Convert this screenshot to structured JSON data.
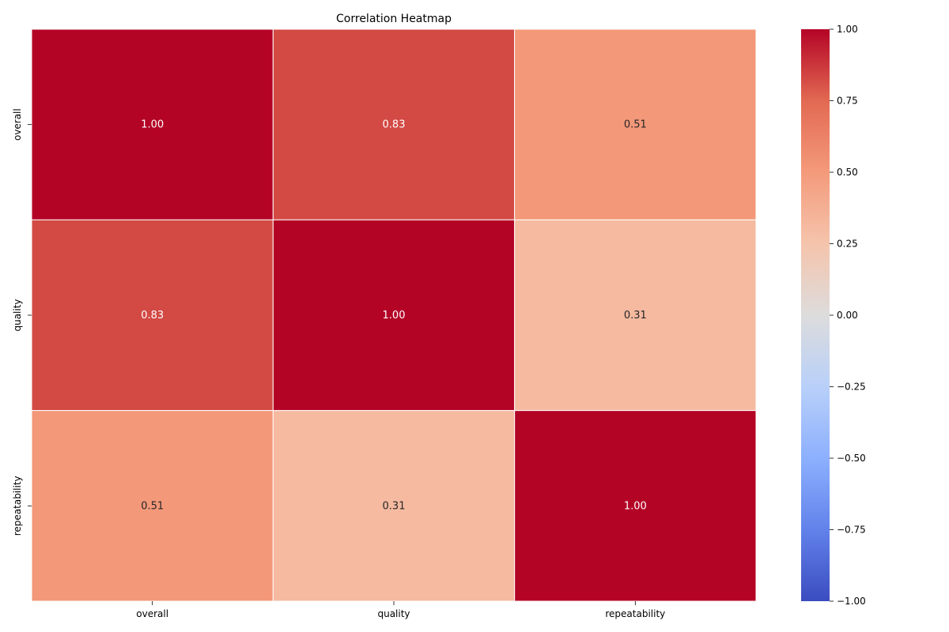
{
  "chart_data": {
    "type": "heatmap",
    "title": "Correlation Heatmap",
    "xlabel": "",
    "ylabel": "",
    "x_categories": [
      "overall",
      "quality",
      "repeatability"
    ],
    "y_categories": [
      "overall",
      "quality",
      "repeatability"
    ],
    "values": [
      [
        1.0,
        0.83,
        0.51
      ],
      [
        0.83,
        1.0,
        0.31
      ],
      [
        0.51,
        0.31,
        1.0
      ]
    ],
    "value_format": "0.00",
    "colormap": "coolwarm",
    "vmin": -1.0,
    "vmax": 1.0,
    "colorbar_ticks": [
      "1.00",
      "0.75",
      "0.50",
      "0.25",
      "0.00",
      "−0.25",
      "−0.50",
      "−0.75",
      "−1.00"
    ],
    "colorbar_tick_values": [
      1.0,
      0.75,
      0.5,
      0.25,
      0.0,
      -0.25,
      -0.5,
      -0.75,
      -1.0
    ],
    "colorbar_position": "right",
    "colors": {
      "low": "#3b4cc0",
      "mid": "#dddddd",
      "high": "#b40426",
      "cell_border": "#ffffff",
      "annotation_light": "#ffffff",
      "annotation_dark": "#262626"
    }
  }
}
